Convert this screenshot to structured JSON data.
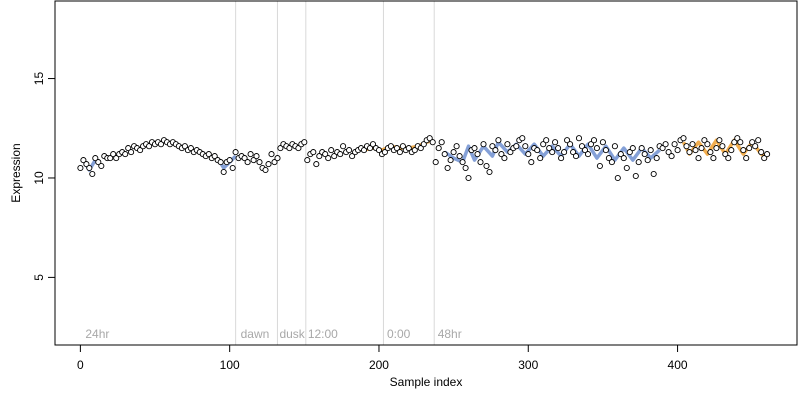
{
  "chart_data": {
    "type": "scatter",
    "title": "",
    "xlabel": "Sample index",
    "ylabel": "Expression",
    "xlim": [
      -17,
      480
    ],
    "ylim": [
      1.6,
      18.9
    ],
    "x_ticks": [
      0,
      100,
      200,
      300,
      400
    ],
    "y_ticks": [
      5,
      10,
      15
    ],
    "grid": false,
    "legend": "none",
    "colors": {
      "point_fill": "#ffffff",
      "point_stroke": "#000000",
      "fit_blue": "#6f8fd0",
      "fit_orange": "#f0a030",
      "divider": "#d9d9d9",
      "region_text": "#a8a8a8"
    },
    "region_labels": [
      {
        "x": 2,
        "text": "24hr"
      },
      {
        "x": 106,
        "text": "dawn"
      },
      {
        "x": 132,
        "text": "dusk"
      },
      {
        "x": 151,
        "text": "12:00"
      },
      {
        "x": 204,
        "text": "0:00"
      },
      {
        "x": 238,
        "text": "48hr"
      }
    ],
    "dividers": [
      104,
      132,
      151,
      203,
      237
    ],
    "series": [
      {
        "values": [
          [
            0,
            10.5
          ],
          [
            2,
            10.9
          ],
          [
            4,
            10.7
          ],
          [
            6,
            10.5
          ],
          [
            8,
            10.2
          ],
          [
            10,
            11.0
          ],
          [
            12,
            10.8
          ],
          [
            14,
            10.6
          ],
          [
            16,
            11.1
          ],
          [
            18,
            11.0
          ],
          [
            20,
            11.0
          ],
          [
            22,
            11.2
          ],
          [
            24,
            11.0
          ],
          [
            26,
            11.2
          ],
          [
            28,
            11.3
          ],
          [
            30,
            11.2
          ],
          [
            32,
            11.5
          ],
          [
            34,
            11.3
          ],
          [
            36,
            11.6
          ],
          [
            38,
            11.5
          ],
          [
            40,
            11.4
          ],
          [
            42,
            11.6
          ],
          [
            44,
            11.7
          ],
          [
            46,
            11.6
          ],
          [
            48,
            11.8
          ],
          [
            50,
            11.7
          ],
          [
            52,
            11.8
          ],
          [
            54,
            11.7
          ],
          [
            56,
            11.9
          ],
          [
            58,
            11.8
          ],
          [
            60,
            11.7
          ],
          [
            62,
            11.8
          ],
          [
            64,
            11.7
          ],
          [
            66,
            11.6
          ],
          [
            68,
            11.5
          ],
          [
            70,
            11.6
          ],
          [
            72,
            11.4
          ],
          [
            74,
            11.5
          ],
          [
            76,
            11.3
          ],
          [
            78,
            11.4
          ],
          [
            80,
            11.3
          ],
          [
            82,
            11.2
          ],
          [
            84,
            11.1
          ],
          [
            86,
            11.2
          ],
          [
            88,
            11.0
          ],
          [
            90,
            11.1
          ],
          [
            92,
            10.9
          ],
          [
            94,
            10.8
          ],
          [
            96,
            10.3
          ],
          [
            98,
            10.8
          ],
          [
            100,
            10.9
          ],
          [
            102,
            10.5
          ],
          [
            104,
            11.3
          ],
          [
            106,
            11.0
          ],
          [
            108,
            11.1
          ],
          [
            110,
            11.0
          ],
          [
            112,
            10.8
          ],
          [
            114,
            11.2
          ],
          [
            116,
            10.9
          ],
          [
            118,
            11.1
          ],
          [
            120,
            10.8
          ],
          [
            122,
            10.5
          ],
          [
            124,
            10.4
          ],
          [
            126,
            10.7
          ],
          [
            128,
            11.2
          ],
          [
            130,
            10.8
          ],
          [
            132,
            11.0
          ],
          [
            134,
            11.5
          ],
          [
            136,
            11.7
          ],
          [
            138,
            11.6
          ],
          [
            140,
            11.5
          ],
          [
            142,
            11.7
          ],
          [
            144,
            11.6
          ],
          [
            146,
            11.5
          ],
          [
            148,
            11.7
          ],
          [
            150,
            11.8
          ],
          [
            152,
            10.9
          ],
          [
            154,
            11.2
          ],
          [
            156,
            11.3
          ],
          [
            158,
            10.7
          ],
          [
            160,
            11.1
          ],
          [
            162,
            11.3
          ],
          [
            164,
            11.2
          ],
          [
            166,
            11.0
          ],
          [
            168,
            11.4
          ],
          [
            170,
            11.1
          ],
          [
            172,
            11.3
          ],
          [
            174,
            11.2
          ],
          [
            176,
            11.6
          ],
          [
            178,
            11.3
          ],
          [
            180,
            11.4
          ],
          [
            182,
            11.1
          ],
          [
            184,
            11.3
          ],
          [
            186,
            11.4
          ],
          [
            188,
            11.5
          ],
          [
            190,
            11.4
          ],
          [
            192,
            11.6
          ],
          [
            194,
            11.5
          ],
          [
            196,
            11.7
          ],
          [
            198,
            11.5
          ],
          [
            200,
            11.4
          ],
          [
            202,
            11.2
          ],
          [
            204,
            11.3
          ],
          [
            206,
            11.5
          ],
          [
            208,
            11.6
          ],
          [
            210,
            11.4
          ],
          [
            212,
            11.5
          ],
          [
            214,
            11.3
          ],
          [
            216,
            11.6
          ],
          [
            218,
            11.4
          ],
          [
            220,
            11.5
          ],
          [
            222,
            11.3
          ],
          [
            224,
            11.4
          ],
          [
            226,
            11.6
          ],
          [
            228,
            11.5
          ],
          [
            230,
            11.7
          ],
          [
            232,
            11.9
          ],
          [
            234,
            12.0
          ],
          [
            236,
            11.8
          ],
          [
            238,
            10.8
          ],
          [
            240,
            11.5
          ],
          [
            242,
            11.8
          ],
          [
            244,
            11.2
          ],
          [
            246,
            10.5
          ],
          [
            248,
            10.9
          ],
          [
            250,
            11.3
          ],
          [
            252,
            11.6
          ],
          [
            254,
            11.1
          ],
          [
            256,
            10.8
          ],
          [
            258,
            10.5
          ],
          [
            260,
            10.0
          ],
          [
            262,
            11.4
          ],
          [
            264,
            11.5
          ],
          [
            266,
            11.2
          ],
          [
            268,
            10.8
          ],
          [
            270,
            11.7
          ],
          [
            272,
            10.6
          ],
          [
            274,
            10.3
          ],
          [
            276,
            11.6
          ],
          [
            278,
            11.4
          ],
          [
            280,
            11.9
          ],
          [
            282,
            11.2
          ],
          [
            284,
            11.0
          ],
          [
            286,
            11.7
          ],
          [
            288,
            11.3
          ],
          [
            290,
            11.5
          ],
          [
            292,
            11.6
          ],
          [
            294,
            11.9
          ],
          [
            296,
            12.0
          ],
          [
            298,
            11.6
          ],
          [
            300,
            11.2
          ],
          [
            302,
            10.8
          ],
          [
            304,
            11.5
          ],
          [
            306,
            11.4
          ],
          [
            308,
            11.0
          ],
          [
            310,
            11.7
          ],
          [
            312,
            11.9
          ],
          [
            314,
            11.5
          ],
          [
            316,
            11.3
          ],
          [
            318,
            11.8
          ],
          [
            320,
            11.5
          ],
          [
            322,
            11.0
          ],
          [
            324,
            11.3
          ],
          [
            326,
            11.9
          ],
          [
            328,
            11.7
          ],
          [
            330,
            11.3
          ],
          [
            332,
            11.1
          ],
          [
            334,
            12.0
          ],
          [
            336,
            11.6
          ],
          [
            338,
            11.4
          ],
          [
            340,
            11.2
          ],
          [
            342,
            11.7
          ],
          [
            344,
            11.9
          ],
          [
            346,
            11.5
          ],
          [
            348,
            10.6
          ],
          [
            350,
            11.8
          ],
          [
            352,
            11.4
          ],
          [
            354,
            11.0
          ],
          [
            356,
            10.8
          ],
          [
            358,
            11.6
          ],
          [
            360,
            10.0
          ],
          [
            362,
            11.2
          ],
          [
            364,
            11.0
          ],
          [
            366,
            10.5
          ],
          [
            368,
            11.3
          ],
          [
            370,
            11.5
          ],
          [
            372,
            10.1
          ],
          [
            374,
            10.8
          ],
          [
            376,
            11.5
          ],
          [
            378,
            11.2
          ],
          [
            380,
            10.9
          ],
          [
            382,
            11.4
          ],
          [
            384,
            10.2
          ],
          [
            386,
            11.0
          ],
          [
            388,
            11.6
          ],
          [
            390,
            11.5
          ],
          [
            392,
            11.7
          ],
          [
            394,
            11.3
          ],
          [
            396,
            11.1
          ],
          [
            398,
            11.7
          ],
          [
            400,
            11.4
          ],
          [
            402,
            11.9
          ],
          [
            404,
            12.0
          ],
          [
            406,
            11.6
          ],
          [
            408,
            11.3
          ],
          [
            410,
            11.7
          ],
          [
            412,
            11.4
          ],
          [
            414,
            11.0
          ],
          [
            416,
            11.5
          ],
          [
            418,
            11.9
          ],
          [
            420,
            11.7
          ],
          [
            422,
            11.3
          ],
          [
            424,
            11.0
          ],
          [
            426,
            11.5
          ],
          [
            428,
            11.9
          ],
          [
            430,
            11.6
          ],
          [
            432,
            11.2
          ],
          [
            434,
            11.0
          ],
          [
            436,
            11.4
          ],
          [
            438,
            11.8
          ],
          [
            440,
            12.0
          ],
          [
            442,
            11.8
          ],
          [
            444,
            11.4
          ],
          [
            446,
            11.0
          ],
          [
            448,
            11.5
          ],
          [
            450,
            11.8
          ],
          [
            452,
            11.6
          ],
          [
            454,
            11.9
          ],
          [
            456,
            11.3
          ],
          [
            458,
            11.0
          ],
          [
            460,
            11.2
          ]
        ]
      }
    ],
    "fit_segments": [
      {
        "color": "blue",
        "points": [
          [
            2,
            10.9
          ],
          [
            6,
            10.4
          ],
          [
            10,
            10.9
          ]
        ]
      },
      {
        "color": "blue",
        "points": [
          [
            92,
            11.0
          ],
          [
            96,
            10.5
          ],
          [
            100,
            10.8
          ],
          [
            104,
            11.1
          ]
        ]
      },
      {
        "color": "orange",
        "points": [
          [
            190,
            11.4
          ],
          [
            196,
            11.5
          ],
          [
            202,
            11.4
          ],
          [
            208,
            11.6
          ],
          [
            214,
            11.5
          ],
          [
            220,
            11.5
          ],
          [
            226,
            11.6
          ],
          [
            232,
            11.8
          ],
          [
            236,
            11.9
          ]
        ]
      },
      {
        "color": "blue",
        "points": [
          [
            244,
            11.3
          ],
          [
            250,
            11.0
          ],
          [
            256,
            10.8
          ],
          [
            260,
            11.6
          ],
          [
            264,
            10.9
          ],
          [
            270,
            11.6
          ],
          [
            276,
            11.1
          ],
          [
            280,
            11.8
          ],
          [
            286,
            11.3
          ],
          [
            292,
            11.7
          ],
          [
            298,
            11.2
          ],
          [
            304,
            11.7
          ],
          [
            310,
            11.1
          ],
          [
            316,
            11.6
          ],
          [
            322,
            11.1
          ],
          [
            328,
            11.7
          ],
          [
            334,
            11.1
          ],
          [
            340,
            11.7
          ],
          [
            346,
            11.0
          ],
          [
            352,
            11.6
          ],
          [
            358,
            10.9
          ],
          [
            364,
            11.5
          ],
          [
            370,
            10.9
          ],
          [
            376,
            11.5
          ],
          [
            382,
            11.0
          ],
          [
            388,
            11.4
          ]
        ]
      },
      {
        "color": "orange",
        "points": [
          [
            404,
            11.8
          ],
          [
            408,
            11.2
          ],
          [
            414,
            11.8
          ],
          [
            420,
            11.2
          ],
          [
            426,
            11.9
          ],
          [
            432,
            11.2
          ],
          [
            438,
            11.9
          ],
          [
            444,
            11.2
          ],
          [
            450,
            11.8
          ],
          [
            456,
            11.2
          ],
          [
            460,
            11.0
          ]
        ]
      }
    ]
  }
}
